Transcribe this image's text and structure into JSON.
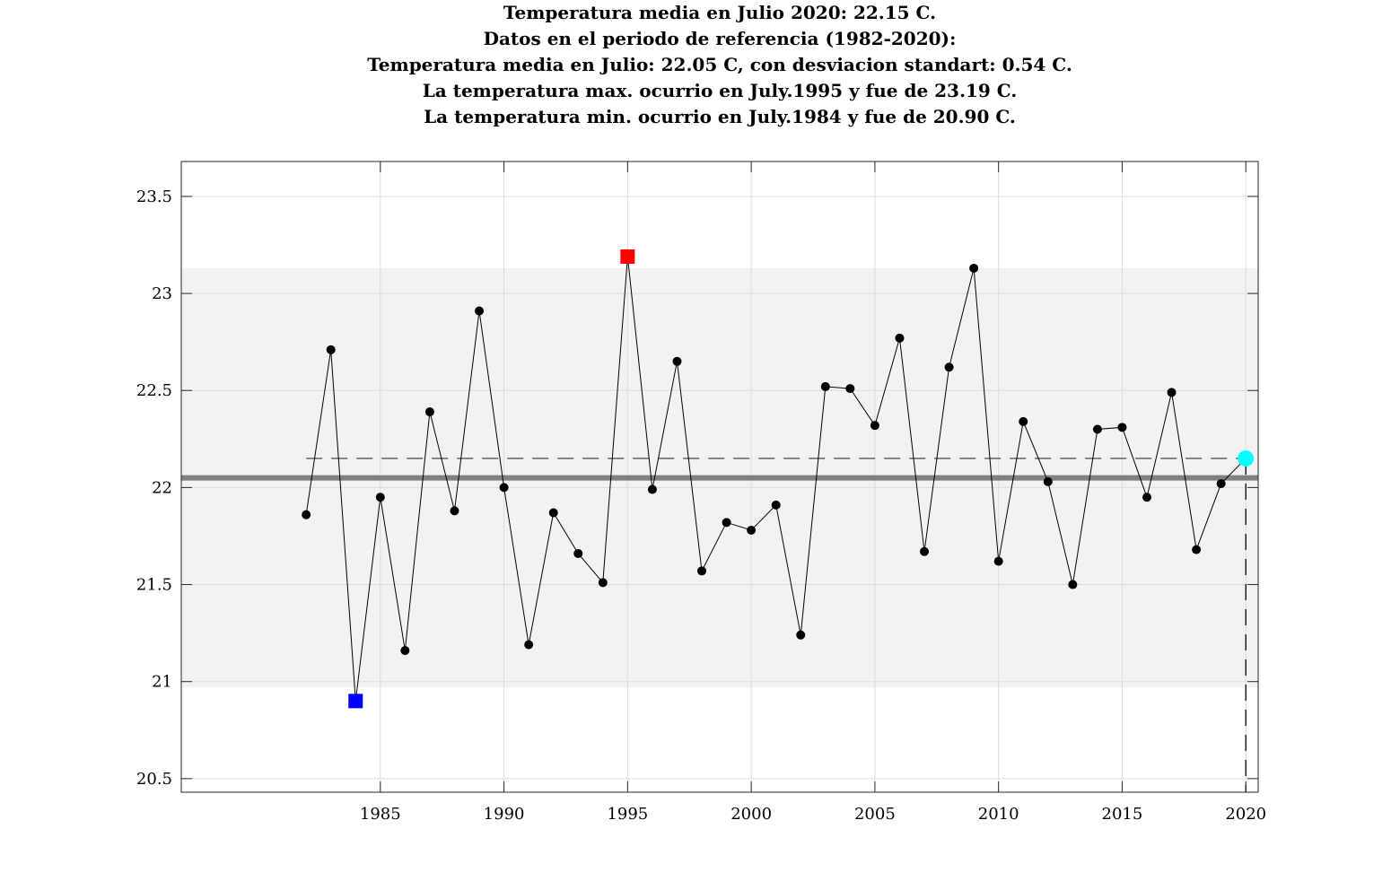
{
  "chart_data": {
    "type": "line",
    "title_lines": [
      "Temperatura media en Julio 2020: 22.15 C.",
      "Datos en el periodo de referencia (1982-2020):",
      "Temperatura media en Julio: 22.05 C, con desviacion standart: 0.54 C.",
      "La temperatura max. ocurrio en July.1995 y fue de 23.19 C.",
      "La temperatura min. ocurrio en July.1984 y fue de 20.90 C."
    ],
    "xlim": [
      1976.95,
      2020.5
    ],
    "ylim": [
      20.43,
      23.68
    ],
    "xticks": [
      1985,
      1990,
      1995,
      2000,
      2005,
      2010,
      2015,
      2020
    ],
    "yticks": [
      20.5,
      21,
      21.5,
      22,
      22.5,
      23,
      23.5
    ],
    "grid": true,
    "years": [
      1982,
      1983,
      1984,
      1985,
      1986,
      1987,
      1988,
      1989,
      1990,
      1991,
      1992,
      1993,
      1994,
      1995,
      1996,
      1997,
      1998,
      1999,
      2000,
      2001,
      2002,
      2003,
      2004,
      2005,
      2006,
      2007,
      2008,
      2009,
      2010,
      2011,
      2012,
      2013,
      2014,
      2015,
      2016,
      2017,
      2018,
      2019,
      2020
    ],
    "values": [
      21.86,
      22.71,
      20.9,
      21.95,
      21.16,
      22.39,
      21.88,
      22.91,
      22.0,
      21.19,
      21.87,
      21.66,
      21.51,
      23.19,
      21.99,
      22.65,
      21.57,
      21.82,
      21.78,
      21.91,
      21.24,
      22.52,
      22.51,
      22.32,
      22.77,
      21.67,
      22.62,
      23.13,
      21.62,
      22.34,
      22.03,
      21.5,
      22.3,
      22.31,
      21.95,
      22.49,
      21.68,
      22.02,
      22.15
    ],
    "reference_mean": 22.05,
    "reference_std": 0.54,
    "current_year": 2020,
    "current_value": 22.15,
    "max_year": 1995,
    "max_value": 23.19,
    "min_year": 1984,
    "min_value": 20.9,
    "colors": {
      "series": "#000000",
      "band": "#f2f2f2",
      "mean_line": "#808080",
      "max_marker": "#ff0000",
      "min_marker": "#0000ff",
      "current_marker": "#00ffff"
    }
  }
}
